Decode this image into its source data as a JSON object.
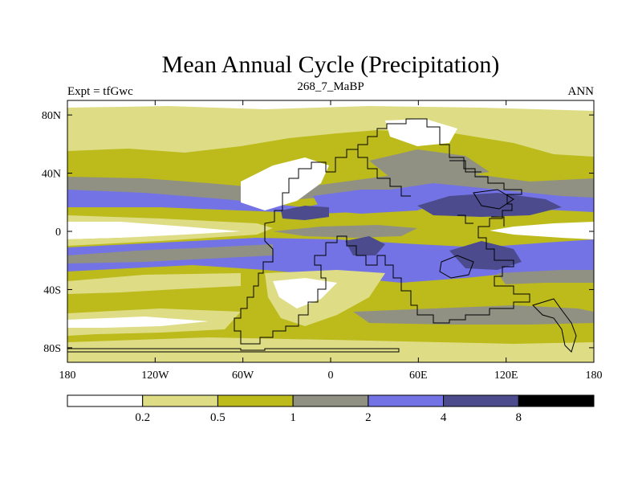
{
  "chart_data": {
    "type": "heatmap",
    "title": "Mean Annual Cycle (Precipitation)",
    "left_string": "Expt = tfGwc",
    "center_string": "268_7_MaBP",
    "right_string": "ANN",
    "x_range": [
      -180,
      180
    ],
    "y_range": [
      -90,
      90
    ],
    "x_ticks": [
      {
        "value": -180,
        "label": "180"
      },
      {
        "value": -120,
        "label": "120W"
      },
      {
        "value": -60,
        "label": "60W"
      },
      {
        "value": 0,
        "label": "0"
      },
      {
        "value": 60,
        "label": "60E"
      },
      {
        "value": 120,
        "label": "120E"
      },
      {
        "value": 180,
        "label": "180"
      }
    ],
    "y_ticks": [
      {
        "value": 80,
        "label": "80N"
      },
      {
        "value": 40,
        "label": "40N"
      },
      {
        "value": 0,
        "label": "0"
      },
      {
        "value": -40,
        "label": "40S"
      },
      {
        "value": -80,
        "label": "80S"
      }
    ],
    "levels": [
      0.2,
      0.5,
      1,
      2,
      4,
      8
    ],
    "level_labels": [
      "0.2",
      "0.5",
      "1",
      "2",
      "4",
      "8"
    ],
    "colors": [
      "#ffffff",
      "#dedd86",
      "#bcbb1b",
      "#919183",
      "#7373e6",
      "#4b4b8e",
      "#000000"
    ],
    "continent_outline": [
      [
        -180,
        -85
      ],
      [
        -30,
        -85
      ],
      [
        -30,
        -82
      ],
      [
        10,
        -82
      ],
      [
        10,
        -84
      ],
      [
        60,
        -84
      ],
      [
        60,
        -82
      ],
      [
        -180,
        -82
      ]
    ]
  }
}
